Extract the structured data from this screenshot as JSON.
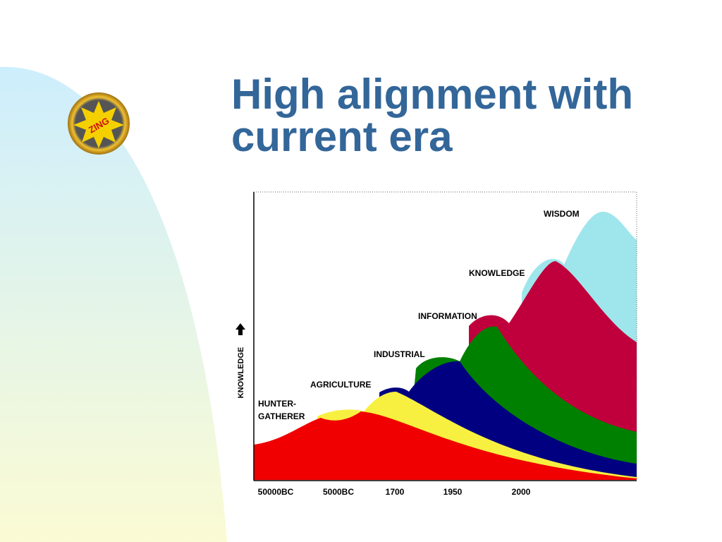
{
  "slide": {
    "title": "High alignment with current era",
    "logo": "ZING"
  },
  "diagram": {
    "y_axis_label": "KNOWLEDGE",
    "eras": [
      {
        "lines": [
          "HUNTER-",
          "GATHERER"
        ]
      },
      {
        "lines": [
          "AGRICULTURE"
        ]
      },
      {
        "lines": [
          "INDUSTRIAL"
        ]
      },
      {
        "lines": [
          "INFORMATION"
        ]
      },
      {
        "lines": [
          "KNOWLEDGE"
        ]
      },
      {
        "lines": [
          "WISDOM"
        ]
      }
    ],
    "x_labels": [
      "50000BC",
      "5000BC",
      "1700",
      "1950",
      "2000"
    ]
  }
}
